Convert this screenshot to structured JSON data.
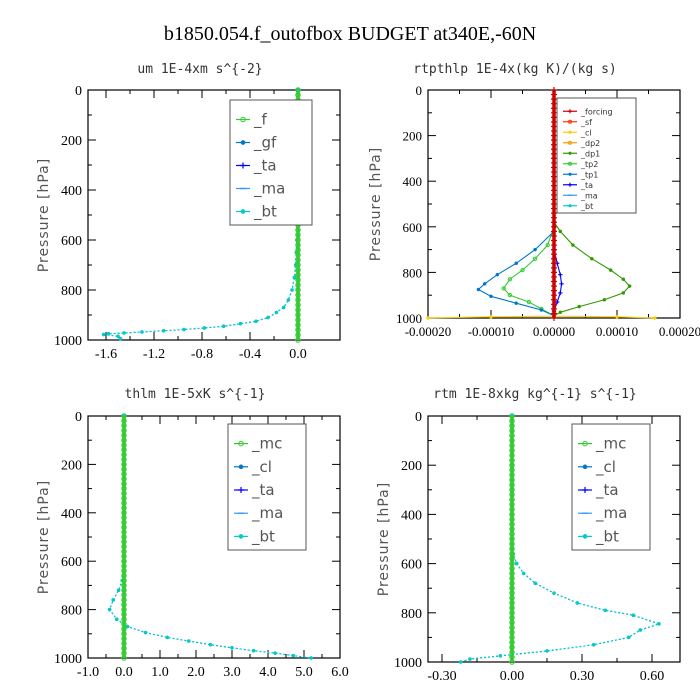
{
  "title": "b1850.054.f_outofbox  BUDGET at340E,-60N",
  "chart_data": [
    {
      "type": "line",
      "title": "um  1E-4xm s^{-2}",
      "ylabel": "Pressure [hPa]",
      "xlim": [
        -1.75,
        0.35
      ],
      "ylim": [
        1000,
        0
      ],
      "xticks": [
        -1.6,
        -1.2,
        -0.8,
        -0.4,
        0.0
      ],
      "xtick_labels": [
        "-1.6",
        "-1.2",
        "-0.8",
        "-0.4",
        "0.0"
      ],
      "yticks": [
        0,
        200,
        400,
        600,
        800,
        1000
      ],
      "ytick_labels": [
        "0",
        "200",
        "400",
        "600",
        "800",
        "1000"
      ],
      "legend_style": "large",
      "legend_position": "top-right",
      "legend": [
        {
          "label": "_f",
          "color": "#33cc33",
          "marker": "o"
        },
        {
          "label": "_gf",
          "color": "#0077cc",
          "marker": "*"
        },
        {
          "label": "_ta",
          "color": "#0000ff",
          "marker": "+"
        },
        {
          "label": "_ma",
          "color": "#3399ff",
          "marker": "-"
        },
        {
          "label": "_bt",
          "color": "#00cccc",
          "marker": "*"
        }
      ],
      "series": [
        {
          "name": "_gf",
          "color": "#0077cc",
          "marker": "*",
          "style": "dashed",
          "points": [
            [
              0,
              0
            ],
            [
              0,
              100
            ],
            [
              0,
              200
            ],
            [
              0,
              300
            ],
            [
              0,
              400
            ],
            [
              -0.002,
              500
            ],
            [
              -0.01,
              600
            ],
            [
              -0.015,
              650
            ],
            [
              -0.02,
              700
            ],
            [
              -0.03,
              750
            ],
            [
              -0.05,
              800
            ],
            [
              -0.08,
              840
            ],
            [
              -0.12,
              870
            ],
            [
              -0.18,
              890
            ],
            [
              -0.25,
              910
            ],
            [
              -0.35,
              925
            ],
            [
              -0.48,
              935
            ],
            [
              -0.62,
              945
            ],
            [
              -0.78,
              952
            ],
            [
              -0.95,
              958
            ],
            [
              -1.12,
              963
            ],
            [
              -1.3,
              968
            ],
            [
              -1.45,
              972
            ],
            [
              -1.58,
              975
            ],
            [
              -1.62,
              978
            ],
            [
              -1.5,
              985
            ],
            [
              -1.48,
              995
            ]
          ]
        },
        {
          "name": "_bt",
          "color": "#00cccc",
          "marker": "*",
          "style": "dashed",
          "points": [
            [
              0,
              0
            ],
            [
              0,
              100
            ],
            [
              0,
              200
            ],
            [
              0,
              300
            ],
            [
              0,
              400
            ],
            [
              -0.002,
              500
            ],
            [
              -0.01,
              600
            ],
            [
              -0.015,
              650
            ],
            [
              -0.02,
              700
            ],
            [
              -0.03,
              750
            ],
            [
              -0.05,
              800
            ],
            [
              -0.08,
              840
            ],
            [
              -0.12,
              870
            ],
            [
              -0.18,
              890
            ],
            [
              -0.25,
              910
            ],
            [
              -0.35,
              925
            ],
            [
              -0.48,
              935
            ],
            [
              -0.62,
              945
            ],
            [
              -0.78,
              952
            ],
            [
              -0.95,
              958
            ],
            [
              -1.12,
              963
            ],
            [
              -1.3,
              968
            ],
            [
              -1.45,
              972
            ],
            [
              -1.58,
              975
            ],
            [
              -1.62,
              978
            ],
            [
              -1.5,
              985
            ],
            [
              -1.48,
              995
            ]
          ]
        },
        {
          "name": "_f",
          "color": "#33cc33",
          "marker": "o",
          "style": "solid",
          "constant_x": 0.0
        }
      ]
    },
    {
      "type": "line",
      "title": "rtpthlp  1E-4x(kg K)/(kg s)",
      "ylabel": "Pressure [hPa]",
      "xlim": [
        -0.0002,
        0.0002
      ],
      "ylim": [
        1000,
        0
      ],
      "xticks": [
        -0.0002,
        -0.0001,
        0.0,
        0.0001,
        0.0002
      ],
      "xtick_labels": [
        "-0.00020",
        "-0.00010",
        "0.00000",
        "0.00010",
        "0.00020"
      ],
      "yticks": [
        0,
        200,
        400,
        600,
        800,
        1000
      ],
      "ytick_labels": [
        "0",
        "200",
        "400",
        "600",
        "800",
        "1000"
      ],
      "legend_style": "small",
      "legend_position": "top-right",
      "legend": [
        {
          "label": "_forcing",
          "color": "#cc0000",
          "marker": "+"
        },
        {
          "label": "_sf",
          "color": "#ff3300",
          "marker": "o"
        },
        {
          "label": "_cl",
          "color": "#ffcc00",
          "marker": "*"
        },
        {
          "label": "_dp2",
          "color": "#ff9900",
          "marker": "o"
        },
        {
          "label": "_dp1",
          "color": "#339900",
          "marker": "*"
        },
        {
          "label": "_tp2",
          "color": "#33cc33",
          "marker": "o"
        },
        {
          "label": "_tp1",
          "color": "#0077cc",
          "marker": "*"
        },
        {
          "label": "_ta",
          "color": "#0000ff",
          "marker": "+"
        },
        {
          "label": "_ma",
          "color": "#3399ff",
          "marker": "-"
        },
        {
          "label": "_bt",
          "color": "#00cccc",
          "marker": "*"
        }
      ],
      "series": [
        {
          "name": "_dp1",
          "color": "#339900",
          "marker": "*",
          "style": "solid",
          "points": [
            [
              0,
              580
            ],
            [
              1e-05,
              620
            ],
            [
              3e-05,
              680
            ],
            [
              6e-05,
              740
            ],
            [
              9e-05,
              790
            ],
            [
              0.00011,
              830
            ],
            [
              0.00012,
              860
            ],
            [
              0.00011,
              890
            ],
            [
              8e-05,
              920
            ],
            [
              4e-05,
              950
            ],
            [
              1e-05,
              975
            ],
            [
              0,
              990
            ]
          ]
        },
        {
          "name": "_tp2",
          "color": "#33cc33",
          "marker": "o",
          "style": "solid",
          "points": [
            [
              0,
              600
            ],
            [
              -1e-05,
              680
            ],
            [
              -3e-05,
              740
            ],
            [
              -5e-05,
              790
            ],
            [
              -7e-05,
              830
            ],
            [
              -8e-05,
              870
            ],
            [
              -7e-05,
              900
            ],
            [
              -4e-05,
              930
            ],
            [
              -2e-05,
              960
            ],
            [
              0,
              990
            ]
          ]
        },
        {
          "name": "_tp1",
          "color": "#0077cc",
          "marker": "*",
          "style": "solid",
          "points": [
            [
              0,
              620
            ],
            [
              -3e-05,
              700
            ],
            [
              -6e-05,
              760
            ],
            [
              -9e-05,
              810
            ],
            [
              -0.00011,
              850
            ],
            [
              -0.00012,
              875
            ],
            [
              -0.0001,
              905
            ],
            [
              -6e-05,
              935
            ],
            [
              -2e-05,
              965
            ],
            [
              0,
              990
            ]
          ]
        },
        {
          "name": "_ta",
          "color": "#0000ff",
          "marker": "+",
          "style": "solid",
          "points": [
            [
              0,
              700
            ],
            [
              5e-06,
              760
            ],
            [
              1e-05,
              810
            ],
            [
              1.2e-05,
              850
            ],
            [
              1e-05,
              890
            ],
            [
              5e-06,
              930
            ],
            [
              0,
              970
            ]
          ]
        },
        {
          "name": "_cl",
          "color": "#ffcc00",
          "marker": "*",
          "style": "solid",
          "points": [
            [
              -0.0002,
              1000
            ],
            [
              -0.0001,
              995
            ],
            [
              0,
              992
            ],
            [
              0.0001,
              995
            ],
            [
              0.00016,
              1000
            ]
          ]
        },
        {
          "name": "_forcing",
          "color": "#cc0000",
          "marker": "+",
          "style": "solid",
          "constant_x": 0.0
        }
      ]
    },
    {
      "type": "line",
      "title": "thlm  1E-5xK s^{-1}",
      "ylabel": "Pressure [hPa]",
      "xlim": [
        -1.0,
        6.0
      ],
      "ylim": [
        1000,
        0
      ],
      "xticks": [
        -1.0,
        0.0,
        1.0,
        2.0,
        3.0,
        4.0,
        5.0,
        6.0
      ],
      "xtick_labels": [
        "-1.0",
        "0.0",
        "1.0",
        "2.0",
        "3.0",
        "4.0",
        "5.0",
        "6.0"
      ],
      "yticks": [
        0,
        200,
        400,
        600,
        800,
        1000
      ],
      "ytick_labels": [
        "0",
        "200",
        "400",
        "600",
        "800",
        "1000"
      ],
      "legend_style": "large",
      "legend_position": "top-right",
      "legend": [
        {
          "label": "_mc",
          "color": "#33cc33",
          "marker": "o"
        },
        {
          "label": "_cl",
          "color": "#0077cc",
          "marker": "*"
        },
        {
          "label": "_ta",
          "color": "#0000ff",
          "marker": "+"
        },
        {
          "label": "_ma",
          "color": "#3399ff",
          "marker": "-"
        },
        {
          "label": "_bt",
          "color": "#00cccc",
          "marker": "*"
        }
      ],
      "series": [
        {
          "name": "_cl",
          "color": "#0077cc",
          "marker": "*",
          "style": "dashed",
          "points": [
            [
              0,
              0
            ],
            [
              0,
              200
            ],
            [
              0,
              400
            ],
            [
              0,
              600
            ],
            [
              -0.05,
              680
            ],
            [
              -0.15,
              720
            ],
            [
              -0.3,
              760
            ],
            [
              -0.4,
              800
            ],
            [
              -0.2,
              840
            ],
            [
              0.1,
              870
            ],
            [
              0.6,
              895
            ],
            [
              1.2,
              915
            ],
            [
              1.8,
              930
            ],
            [
              2.4,
              945
            ],
            [
              3.0,
              958
            ],
            [
              3.6,
              970
            ],
            [
              4.2,
              980
            ],
            [
              4.7,
              990
            ],
            [
              5.2,
              1000
            ]
          ]
        },
        {
          "name": "_bt",
          "color": "#00cccc",
          "marker": "*",
          "style": "dashed",
          "points": [
            [
              0,
              0
            ],
            [
              0,
              200
            ],
            [
              0,
              400
            ],
            [
              0,
              600
            ],
            [
              -0.05,
              680
            ],
            [
              -0.15,
              720
            ],
            [
              -0.3,
              760
            ],
            [
              -0.4,
              800
            ],
            [
              -0.2,
              840
            ],
            [
              0.1,
              870
            ],
            [
              0.6,
              895
            ],
            [
              1.2,
              915
            ],
            [
              1.8,
              930
            ],
            [
              2.4,
              945
            ],
            [
              3.0,
              958
            ],
            [
              3.6,
              970
            ],
            [
              4.2,
              980
            ],
            [
              4.7,
              990
            ],
            [
              5.2,
              1000
            ]
          ]
        },
        {
          "name": "_mc",
          "color": "#33cc33",
          "marker": "o",
          "style": "solid",
          "constant_x": 0.0
        }
      ]
    },
    {
      "type": "line",
      "title": "rtm  1E-8xkg kg^{-1} s^{-1}",
      "ylabel": "Pressure [hPa]",
      "xlim": [
        -0.36,
        0.72
      ],
      "ylim": [
        1000,
        0
      ],
      "xticks": [
        -0.3,
        0.0,
        0.3,
        0.6
      ],
      "xtick_labels": [
        "-0.30",
        "0.00",
        "0.30",
        "0.60"
      ],
      "yticks": [
        0,
        200,
        400,
        600,
        800,
        1000
      ],
      "ytick_labels": [
        "0",
        "200",
        "400",
        "600",
        "800",
        "1000"
      ],
      "legend_style": "large",
      "legend_position": "top-right",
      "legend": [
        {
          "label": "_mc",
          "color": "#33cc33",
          "marker": "o"
        },
        {
          "label": "_cl",
          "color": "#0077cc",
          "marker": "*"
        },
        {
          "label": "_ta",
          "color": "#0000ff",
          "marker": "+"
        },
        {
          "label": "_ma",
          "color": "#3399ff",
          "marker": "-"
        },
        {
          "label": "_bt",
          "color": "#00cccc",
          "marker": "*"
        }
      ],
      "series": [
        {
          "name": "_cl",
          "color": "#0077cc",
          "marker": "*",
          "style": "dashed",
          "points": [
            [
              0,
              0
            ],
            [
              0,
              200
            ],
            [
              0,
              400
            ],
            [
              0.005,
              560
            ],
            [
              0.02,
              600
            ],
            [
              0.05,
              640
            ],
            [
              0.1,
              680
            ],
            [
              0.18,
              720
            ],
            [
              0.28,
              760
            ],
            [
              0.4,
              790
            ],
            [
              0.52,
              810
            ],
            [
              0.63,
              845
            ],
            [
              0.55,
              870
            ],
            [
              0.5,
              900
            ],
            [
              0.35,
              930
            ],
            [
              0.15,
              955
            ],
            [
              -0.05,
              975
            ],
            [
              -0.18,
              988
            ],
            [
              -0.22,
              1000
            ]
          ]
        },
        {
          "name": "_bt",
          "color": "#00cccc",
          "marker": "*",
          "style": "dashed",
          "points": [
            [
              0,
              0
            ],
            [
              0,
              200
            ],
            [
              0,
              400
            ],
            [
              0.005,
              560
            ],
            [
              0.02,
              600
            ],
            [
              0.05,
              640
            ],
            [
              0.1,
              680
            ],
            [
              0.18,
              720
            ],
            [
              0.28,
              760
            ],
            [
              0.4,
              790
            ],
            [
              0.52,
              810
            ],
            [
              0.63,
              845
            ],
            [
              0.55,
              870
            ],
            [
              0.5,
              900
            ],
            [
              0.35,
              930
            ],
            [
              0.15,
              955
            ],
            [
              -0.05,
              975
            ],
            [
              -0.18,
              988
            ],
            [
              -0.22,
              1000
            ]
          ]
        },
        {
          "name": "_mc",
          "color": "#33cc33",
          "marker": "o",
          "style": "solid",
          "constant_x": 0.0
        }
      ]
    }
  ]
}
